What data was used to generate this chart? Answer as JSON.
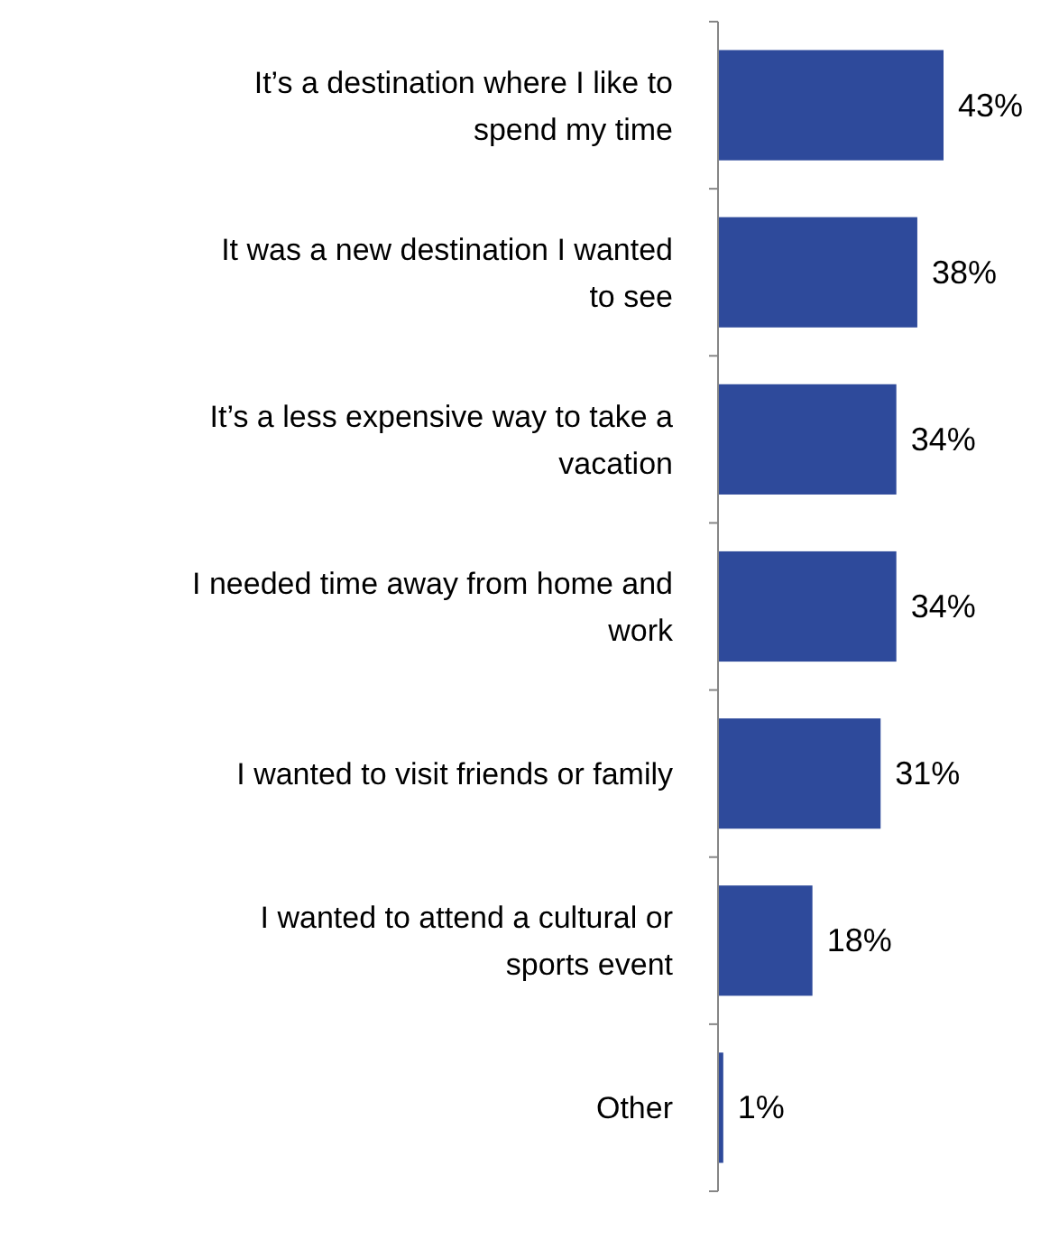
{
  "chart_data": {
    "type": "bar",
    "orientation": "horizontal",
    "categories": [
      "It’s a destination where I like to spend my time",
      "It was a new destination I wanted to see",
      "It’s a less expensive way to take a vacation",
      "I needed time away from home and work",
      "I wanted to visit friends or family",
      "I wanted to attend a cultural or sports event",
      "Other"
    ],
    "values": [
      43,
      38,
      34,
      34,
      31,
      18,
      1
    ],
    "value_labels": [
      "43%",
      "38%",
      "34%",
      "34%",
      "31%",
      "18%",
      "1%"
    ],
    "color": "#2e4a9b"
  }
}
